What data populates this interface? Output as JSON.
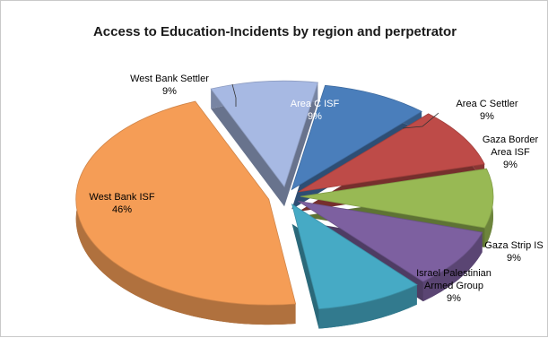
{
  "chart_data": {
    "type": "pie",
    "title": "Access to Education-Incidents by region and perpetrator",
    "slices": [
      {
        "name": "Area C ISF",
        "label_lines": [
          "Area C ISF"
        ],
        "value_label": "9%",
        "value": 9,
        "color": "#4a7ebb"
      },
      {
        "name": "Area C Settler",
        "label_lines": [
          "Area C Settler"
        ],
        "value_label": "9%",
        "value": 9,
        "color": "#be4b48"
      },
      {
        "name": "Gaza Border Area ISF",
        "label_lines": [
          "Gaza Border",
          "Area ISF"
        ],
        "value_label": "9%",
        "value": 9,
        "color": "#98b954"
      },
      {
        "name": "Gaza Strip IS",
        "label_lines": [
          "Gaza Strip IS"
        ],
        "value_label": "9%",
        "value": 9,
        "color": "#7d60a0"
      },
      {
        "name": "Israel Palestinian Armed Group",
        "label_lines": [
          "Israel Palestinian",
          "Armed Group"
        ],
        "value_label": "9%",
        "value": 9,
        "color": "#46aac5"
      },
      {
        "name": "West Bank ISF",
        "label_lines": [
          "West Bank ISF"
        ],
        "value_label": "46%",
        "value": 46,
        "color": "#f59d56"
      },
      {
        "name": "West Bank Settler",
        "label_lines": [
          "West Bank Settler"
        ],
        "value_label": "9%",
        "value": 9,
        "color": "#a7b9e3"
      }
    ],
    "legend": "none",
    "style": "3d-exploded-pie"
  }
}
